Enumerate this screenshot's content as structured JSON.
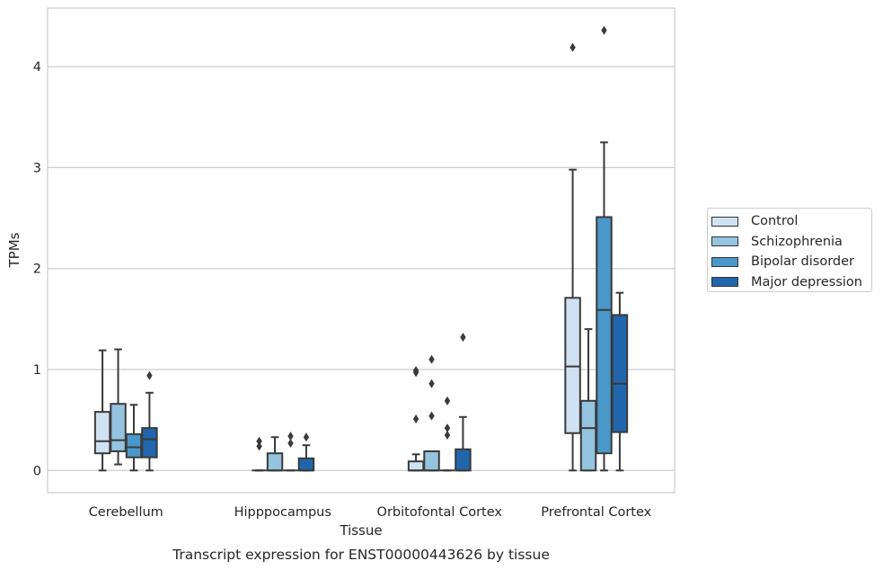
{
  "chart_data": {
    "type": "box",
    "title": "Transcript expression for ENST00000443626 by tissue",
    "xlabel": "Tissue",
    "ylabel": "TPMs",
    "ylim": [
      -0.22,
      4.58
    ],
    "yticks": [
      "0",
      "1",
      "2",
      "3",
      "4"
    ],
    "grid": true,
    "legend_position": "right",
    "categories": [
      "Cerebellum",
      "Hipppocampus",
      "Orbitofontal Cortex",
      "Prefrontal Cortex"
    ],
    "series": [
      {
        "name": "Control",
        "color": "#d0e1f2",
        "boxes": [
          {
            "min": 0.0,
            "q1": 0.17,
            "median": 0.29,
            "q3": 0.58,
            "max": 1.19,
            "outliers": []
          },
          {
            "min": 0.0,
            "q1": 0.0,
            "median": 0.0,
            "q3": 0.0,
            "max": 0.0,
            "outliers": [
              0.24,
              0.29
            ]
          },
          {
            "min": 0.0,
            "q1": 0.0,
            "median": 0.0,
            "q3": 0.09,
            "max": 0.16,
            "outliers": [
              0.51,
              0.97,
              0.99
            ]
          },
          {
            "min": 0.0,
            "q1": 0.37,
            "median": 1.03,
            "q3": 1.71,
            "max": 2.98,
            "outliers": [
              4.19
            ]
          }
        ]
      },
      {
        "name": "Schizophrenia",
        "color": "#94c4df",
        "boxes": [
          {
            "min": 0.06,
            "q1": 0.19,
            "median": 0.3,
            "q3": 0.66,
            "max": 1.2,
            "outliers": []
          },
          {
            "min": 0.0,
            "q1": 0.0,
            "median": 0.0,
            "q3": 0.17,
            "max": 0.33,
            "outliers": []
          },
          {
            "min": 0.0,
            "q1": 0.0,
            "median": 0.0,
            "q3": 0.19,
            "max": 0.19,
            "outliers": [
              0.54,
              0.86,
              1.1
            ]
          },
          {
            "min": 0.0,
            "q1": 0.0,
            "median": 0.42,
            "q3": 0.69,
            "max": 1.4,
            "outliers": []
          }
        ]
      },
      {
        "name": "Bipolar disorder",
        "color": "#4a98c9",
        "boxes": [
          {
            "min": 0.0,
            "q1": 0.13,
            "median": 0.23,
            "q3": 0.36,
            "max": 0.65,
            "outliers": []
          },
          {
            "min": 0.0,
            "q1": 0.0,
            "median": 0.0,
            "q3": 0.0,
            "max": 0.0,
            "outliers": [
              0.27,
              0.34
            ]
          },
          {
            "min": 0.0,
            "q1": 0.0,
            "median": 0.0,
            "q3": 0.0,
            "max": 0.0,
            "outliers": [
              0.35,
              0.42,
              0.69
            ]
          },
          {
            "min": 0.0,
            "q1": 0.17,
            "median": 1.59,
            "q3": 2.51,
            "max": 3.25,
            "outliers": [
              4.36
            ]
          }
        ]
      },
      {
        "name": "Major depression",
        "color": "#2166ac",
        "boxes": [
          {
            "min": 0.0,
            "q1": 0.13,
            "median": 0.31,
            "q3": 0.42,
            "max": 0.77,
            "outliers": [
              0.94
            ]
          },
          {
            "min": 0.0,
            "q1": 0.0,
            "median": 0.0,
            "q3": 0.12,
            "max": 0.25,
            "outliers": [
              0.33
            ]
          },
          {
            "min": 0.0,
            "q1": 0.0,
            "median": 0.0,
            "q3": 0.21,
            "max": 0.53,
            "outliers": [
              1.32
            ]
          },
          {
            "min": 0.0,
            "q1": 0.38,
            "median": 0.86,
            "q3": 1.54,
            "max": 1.76,
            "outliers": []
          }
        ]
      }
    ]
  }
}
